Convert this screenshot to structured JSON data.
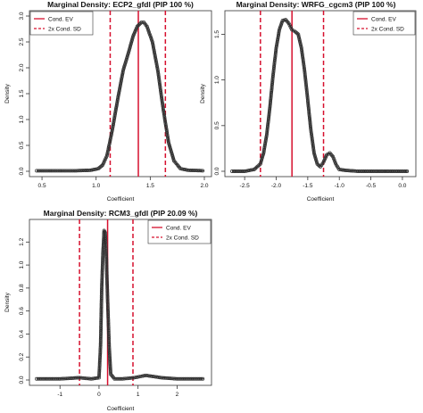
{
  "colors": {
    "ev_line": "#d6102e",
    "sd_line": "#d6102e",
    "density": "#2f2f2f",
    "frame": "#333333"
  },
  "chart_data": [
    {
      "type": "line",
      "title": "Marginal Density: ECP2_gfdl (PIP 100 %)",
      "xlabel": "Coefficient",
      "ylabel": "Density",
      "xlim": [
        0.45,
        2.0
      ],
      "ylim": [
        0,
        3.0
      ],
      "xticks": [
        "0.5",
        "1.0",
        "1.5",
        "2.0"
      ],
      "xtick_values": [
        0.5,
        1.0,
        1.5,
        2.0
      ],
      "yticks": [
        "0.0",
        "0.5",
        "1.0",
        "1.5",
        "2.0",
        "2.5",
        "3.0"
      ],
      "ytick_values": [
        0,
        0.5,
        1.0,
        1.5,
        2.0,
        2.5,
        3.0
      ],
      "legend": {
        "position": "top-left",
        "entries": [
          "Cond. EV",
          "2x Cond. SD"
        ]
      },
      "cond_ev": 1.39,
      "cond_sd_bounds": [
        1.13,
        1.64
      ],
      "series": [
        {
          "x": [
            0.45,
            0.6,
            0.8,
            0.95,
            1.02,
            1.06,
            1.1,
            1.15,
            1.2,
            1.25,
            1.3,
            1.34,
            1.38,
            1.42,
            1.44,
            1.47,
            1.52,
            1.57,
            1.62,
            1.67,
            1.72,
            1.78,
            1.85,
            2.0
          ],
          "y": [
            0.01,
            0.01,
            0.01,
            0.02,
            0.05,
            0.12,
            0.3,
            0.8,
            1.4,
            1.95,
            2.3,
            2.6,
            2.8,
            2.88,
            2.88,
            2.8,
            2.5,
            1.95,
            1.2,
            0.55,
            0.2,
            0.05,
            0.02,
            0.01
          ]
        }
      ]
    },
    {
      "type": "line",
      "title": "Marginal Density: WRFG_cgcm3 (PIP 100 %)",
      "xlabel": "Coefficient",
      "ylabel": "Density",
      "xlim": [
        -2.7,
        0.1
      ],
      "ylim": [
        0,
        1.7
      ],
      "xticks": [
        "-2.5",
        "-2.0",
        "-1.5",
        "-1.0",
        "-0.5",
        "0.0"
      ],
      "xtick_values": [
        -2.5,
        -2.0,
        -1.5,
        -1.0,
        -0.5,
        0.0
      ],
      "yticks": [
        "0.0",
        "0.5",
        "1.0",
        "1.5"
      ],
      "ytick_values": [
        0,
        0.5,
        1.0,
        1.5
      ],
      "legend": {
        "position": "top-right",
        "entries": [
          "Cond. EV",
          "2x Cond. SD"
        ]
      },
      "cond_ev": -1.75,
      "cond_sd_bounds": [
        -2.25,
        -1.25
      ],
      "series": [
        {
          "x": [
            -2.7,
            -2.5,
            -2.35,
            -2.25,
            -2.2,
            -2.15,
            -2.1,
            -2.05,
            -2.0,
            -1.95,
            -1.9,
            -1.85,
            -1.8,
            -1.75,
            -1.7,
            -1.65,
            -1.6,
            -1.55,
            -1.5,
            -1.45,
            -1.4,
            -1.35,
            -1.3,
            -1.25,
            -1.2,
            -1.15,
            -1.1,
            -1.05,
            -1.0,
            -0.9,
            -0.7,
            -0.4,
            0.1
          ],
          "y": [
            0.0,
            0.0,
            0.02,
            0.08,
            0.2,
            0.4,
            0.7,
            1.05,
            1.35,
            1.55,
            1.65,
            1.66,
            1.62,
            1.55,
            1.53,
            1.5,
            1.35,
            1.1,
            0.78,
            0.45,
            0.2,
            0.08,
            0.05,
            0.1,
            0.18,
            0.2,
            0.16,
            0.07,
            0.02,
            0.01,
            0.0,
            0.0,
            0.0
          ]
        }
      ]
    },
    {
      "type": "line",
      "title": "Marginal Density: RCM3_gfdl (PIP 20.09 %)",
      "xlabel": "Coefficient",
      "ylabel": "Density",
      "xlim": [
        -1.6,
        2.7
      ],
      "ylim": [
        0,
        1.35
      ],
      "xticks": [
        "-1",
        "0",
        "1",
        "2"
      ],
      "xtick_values": [
        -1,
        0,
        1,
        2
      ],
      "yticks": [
        "0.0",
        "0.2",
        "0.4",
        "0.6",
        "0.8",
        "1.0",
        "1.2"
      ],
      "ytick_values": [
        0,
        0.2,
        0.4,
        0.6,
        0.8,
        1.0,
        1.2
      ],
      "legend": {
        "position": "top-right",
        "entries": [
          "Cond. EV",
          "2x Cond. SD"
        ]
      },
      "cond_ev": 0.22,
      "cond_sd_bounds": [
        -0.5,
        0.87
      ],
      "series": [
        {
          "x": [
            -1.6,
            -1.0,
            -0.5,
            -0.2,
            0.0,
            0.04,
            0.07,
            0.1,
            0.13,
            0.16,
            0.19,
            0.22,
            0.26,
            0.3,
            0.4,
            0.6,
            0.9,
            1.2,
            1.6,
            2.0,
            2.7
          ],
          "y": [
            0.01,
            0.01,
            0.02,
            0.01,
            0.02,
            0.3,
            0.8,
            1.1,
            1.3,
            1.28,
            1.05,
            0.7,
            0.3,
            0.05,
            0.01,
            0.01,
            0.02,
            0.04,
            0.02,
            0.01,
            0.01
          ]
        }
      ]
    }
  ]
}
